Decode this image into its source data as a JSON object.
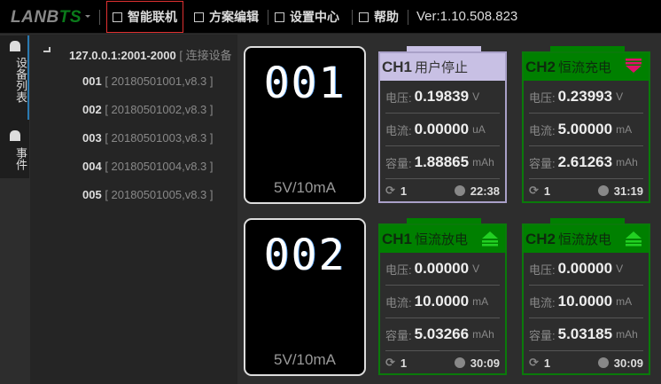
{
  "app": {
    "logo_main": "LANB",
    "logo_accent": "TS",
    "version": "Ver:1.10.508.823"
  },
  "menu": [
    {
      "label": "智能联机",
      "icon": "user-network-icon",
      "active": true
    },
    {
      "label": "方案编辑",
      "icon": "table-icon"
    },
    {
      "label": "设置中心",
      "icon": "grid-icon"
    },
    {
      "label": "帮助",
      "icon": "book-icon"
    }
  ],
  "vtabs": [
    {
      "label": "设备列表",
      "icon": "device-list-icon",
      "active": true
    },
    {
      "label": "事件",
      "icon": "alarm-icon"
    }
  ],
  "tree": {
    "root": {
      "name": "127.0.0.1:2001-2000",
      "status": "[ 连接设备"
    },
    "devices": [
      {
        "id": "001",
        "info": "[ 20180501001,v8.3 ]"
      },
      {
        "id": "002",
        "info": "[ 20180501002,v8.3 ]"
      },
      {
        "id": "003",
        "info": "[ 20180501003,v8.3 ]"
      },
      {
        "id": "004",
        "info": "[ 20180501004,v8.3 ]"
      },
      {
        "id": "005",
        "info": "[ 20180501005,v8.3 ]"
      }
    ]
  },
  "labels": {
    "voltage": "电压:",
    "current": "电流:",
    "capacity": "容量:"
  },
  "colors": {
    "running": "#008000",
    "stopped": "#c8c0e4",
    "charge_arrow": "#e0106a",
    "discharge_arrow": "#22d022"
  },
  "units": [
    {
      "id": "001",
      "spec": "5V/10mA",
      "channels": [
        {
          "ch": "CH1",
          "state": "用户停止",
          "mode": "stopped",
          "voltage": "0.19839",
          "v_unit": "V",
          "current": "0.00000",
          "c_unit": "uA",
          "capacity": "1.88865",
          "cap_unit": "mAh",
          "cycle": "1",
          "time": "22:38"
        },
        {
          "ch": "CH2",
          "state": "恒流充电",
          "mode": "charge",
          "voltage": "0.23993",
          "v_unit": "V",
          "current": "5.00000",
          "c_unit": "mA",
          "capacity": "2.61263",
          "cap_unit": "mAh",
          "cycle": "1",
          "time": "31:19"
        }
      ]
    },
    {
      "id": "002",
      "spec": "5V/10mA",
      "channels": [
        {
          "ch": "CH1",
          "state": "恒流放电",
          "mode": "discharge",
          "voltage": "0.00000",
          "v_unit": "V",
          "current": "10.0000",
          "c_unit": "mA",
          "capacity": "5.03266",
          "cap_unit": "mAh",
          "cycle": "1",
          "time": "30:09"
        },
        {
          "ch": "CH2",
          "state": "恒流放电",
          "mode": "discharge",
          "voltage": "0.00000",
          "v_unit": "V",
          "current": "10.0000",
          "c_unit": "mA",
          "capacity": "5.03185",
          "cap_unit": "mAh",
          "cycle": "1",
          "time": "30:09"
        }
      ]
    }
  ]
}
